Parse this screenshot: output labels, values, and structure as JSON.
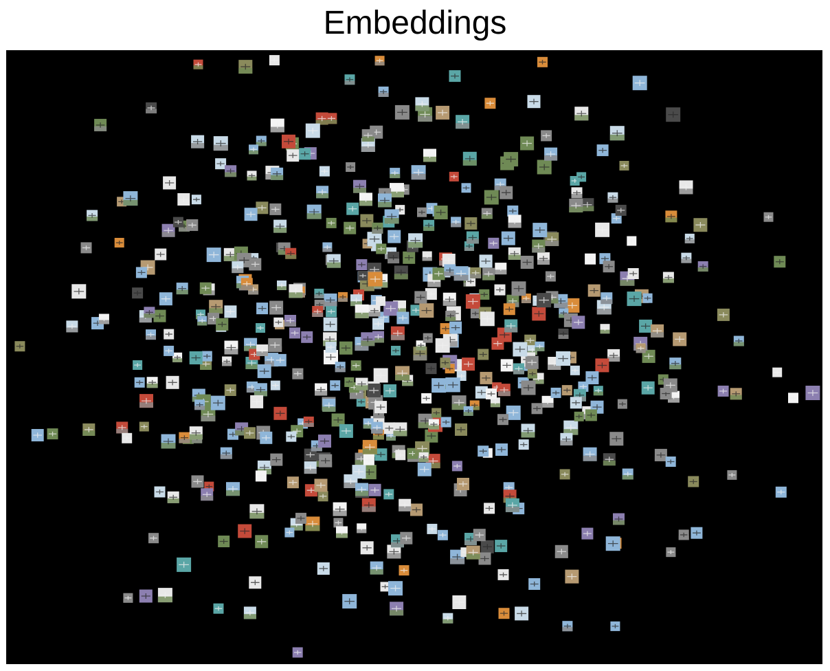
{
  "figure": {
    "title": "Embeddings"
  },
  "image_grid": {
    "description_colors": {
      "background": "#000000",
      "sky_blue": "#8fb6d9",
      "light_sky": "#c9dbe8",
      "pale": "#e8e8e8",
      "grey": "#8a8a8a",
      "dark_grey": "#4a4a4a",
      "green": "#6f8a55",
      "olive": "#8a8a5c",
      "tan": "#b69a72",
      "orange": "#d98c3a",
      "red": "#c44a3a",
      "teal": "#5aa6a6",
      "purple": "#8c7fb0",
      "white": "#f4f4f4"
    }
  }
}
